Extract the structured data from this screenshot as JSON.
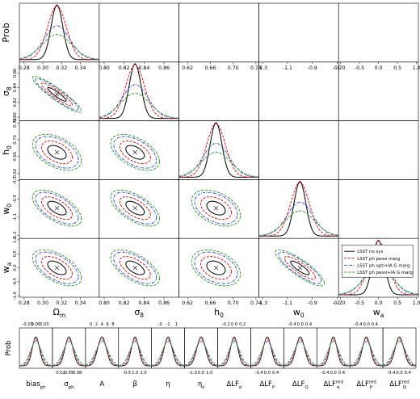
{
  "chart_data": {
    "type": "triangle-posterior",
    "parameters": [
      {
        "key": "om",
        "label": "Ωm",
        "range": [
          0.275,
          0.36
        ],
        "ticks": [
          "0.28",
          "0.30",
          "0.32",
          "0.34"
        ],
        "ticks_y": [
          "0.28",
          "0.30",
          "0.32",
          "0.34"
        ],
        "tick_values": [
          0.28,
          0.3,
          0.32,
          0.34
        ],
        "mean": 0.315
      },
      {
        "key": "s8",
        "label": "σ8",
        "range": [
          0.795,
          0.875
        ],
        "ticks": [
          "0.80",
          "0.82",
          "0.84",
          "0.86"
        ],
        "ticks_y": [
          "0.80",
          "0.82",
          "0.84",
          "0.86"
        ],
        "tick_values": [
          0.8,
          0.82,
          0.84,
          0.86
        ],
        "mean": 0.831
      },
      {
        "key": "h0",
        "label": "h0",
        "range": [
          0.605,
          0.745
        ],
        "ticks": [
          "0.62",
          "0.66",
          "0.70",
          "0.74"
        ],
        "ticks_y": [
          "0.62",
          "0.66",
          "0.70",
          "0.74"
        ],
        "tick_values": [
          0.62,
          0.66,
          0.7,
          0.74
        ],
        "mean": 0.67
      },
      {
        "key": "w0",
        "label": "w0",
        "range": [
          -1.33,
          -0.69
        ],
        "ticks": [
          "-1.3",
          "-1.1",
          "-0.9",
          "-0.7"
        ],
        "ticks_y": [
          "-1.3",
          "-1.1",
          "-0.9",
          "-0.7"
        ],
        "tick_values": [
          -1.3,
          -1.1,
          -0.9,
          -0.7
        ],
        "mean": -1.0
      },
      {
        "key": "wa",
        "label": "wa",
        "range": [
          -1.05,
          1.05
        ],
        "ticks": [
          "-1.0",
          "-0.5",
          "0.0",
          "0.5",
          "1.0"
        ],
        "ticks_y": [
          "-1.0",
          "-0.5",
          "0.0",
          "0.5",
          "1.0"
        ],
        "tick_values": [
          -1.0,
          -0.5,
          0.0,
          0.5,
          1.0
        ],
        "mean": 0.0
      }
    ],
    "diag_ylabel": "Prob",
    "series": [
      {
        "name": "LSST no sys",
        "color": "#000000",
        "dash": "none",
        "width_scale": 1.0
      },
      {
        "name": "LSST ph pessi marg",
        "color": "#e41a1c",
        "dash": "3,1.6",
        "width_scale": 1.25
      },
      {
        "name": "LSST ph opti+IA G marg",
        "color": "#2c3fd6",
        "dash": "3,1.4,0.8,1.4",
        "width_scale": 1.55
      },
      {
        "name": "LSST ph pessi+IA G marg",
        "color": "#3aa23a",
        "dash": "3.4,1.6",
        "width_scale": 1.75
      }
    ],
    "correlations": [
      {
        "pair": [
          "s8",
          "om"
        ],
        "rho": -0.92
      },
      {
        "pair": [
          "h0",
          "om"
        ],
        "rho": -0.45
      },
      {
        "pair": [
          "h0",
          "s8"
        ],
        "rho": -0.5
      },
      {
        "pair": [
          "w0",
          "om"
        ],
        "rho": -0.6
      },
      {
        "pair": [
          "w0",
          "s8"
        ],
        "rho": -0.6
      },
      {
        "pair": [
          "w0",
          "h0"
        ],
        "rho": -0.4
      },
      {
        "pair": [
          "wa",
          "om"
        ],
        "rho": -0.55
      },
      {
        "pair": [
          "wa",
          "s8"
        ],
        "rho": -0.6
      },
      {
        "pair": [
          "wa",
          "h0"
        ],
        "rho": -0.35
      },
      {
        "pair": [
          "wa",
          "w0"
        ],
        "rho": -0.85
      }
    ],
    "legend_position": "lower-right",
    "nuisance_panels": [
      {
        "label": "bias_ph",
        "label_main": "bias",
        "label_sub": "ph",
        "label_sup": "",
        "ticks": [
          "-0.03",
          "0.00",
          "0.03"
        ],
        "bottom_ticks": []
      },
      {
        "label": "σ_ph",
        "label_main": "σ",
        "label_sub": "ph",
        "label_sup": "",
        "ticks": [],
        "bottom_ticks": [
          "0.02",
          "0.05",
          "0.08"
        ]
      },
      {
        "label": "A",
        "label_main": "A",
        "label_sub": "",
        "label_sup": "",
        "ticks": [
          "0",
          "2",
          "4",
          "6",
          "8"
        ],
        "bottom_ticks": []
      },
      {
        "label": "β",
        "label_main": "β",
        "label_sub": "",
        "label_sup": "",
        "ticks": [],
        "bottom_ticks": [
          "-0.5",
          "1.0",
          "2.0"
        ]
      },
      {
        "label": "η",
        "label_main": "η",
        "label_sub": "",
        "label_sup": "",
        "ticks": [
          "-3",
          "-1",
          "1"
        ],
        "bottom_ticks": []
      },
      {
        "label": "η_z",
        "label_main": "η",
        "label_sub": "z",
        "label_sup": "",
        "ticks": [],
        "bottom_ticks": [
          "-1.0",
          "0.0",
          "1.0"
        ]
      },
      {
        "label": "ΔLF_α",
        "label_main": "ΔLF",
        "label_sub": "α",
        "label_sup": "",
        "ticks": [
          "-0.2",
          "0.0",
          "0.2"
        ],
        "bottom_ticks": []
      },
      {
        "label": "ΔLF_P",
        "label_main": "ΔLF",
        "label_sub": "P",
        "label_sup": "",
        "ticks": [],
        "bottom_ticks": [
          "-0.4",
          "0.0",
          "0.4"
        ]
      },
      {
        "label": "ΔLF_Q",
        "label_main": "ΔLF",
        "label_sub": "Q",
        "label_sup": "",
        "ticks": [
          "-0.4",
          "0.0",
          "0.4"
        ],
        "bottom_ticks": []
      },
      {
        "label": "ΔLF_α^red",
        "label_main": "ΔLF",
        "label_sub": "α",
        "label_sup": "red",
        "ticks": [],
        "bottom_ticks": [
          "-0.4",
          "0.0",
          "0.4"
        ]
      },
      {
        "label": "ΔLF_P^red",
        "label_main": "ΔLF",
        "label_sub": "P",
        "label_sup": "red",
        "ticks": [
          "-0.4",
          "0.0",
          "0.4"
        ],
        "bottom_ticks": []
      },
      {
        "label": "ΔLF_Q^red",
        "label_main": "ΔLF",
        "label_sub": "Q",
        "label_sup": "red",
        "ticks": [],
        "bottom_ticks": [
          "-0.4",
          "0.0",
          "0.4"
        ]
      }
    ],
    "nuisance_ylabel": "Prob"
  }
}
